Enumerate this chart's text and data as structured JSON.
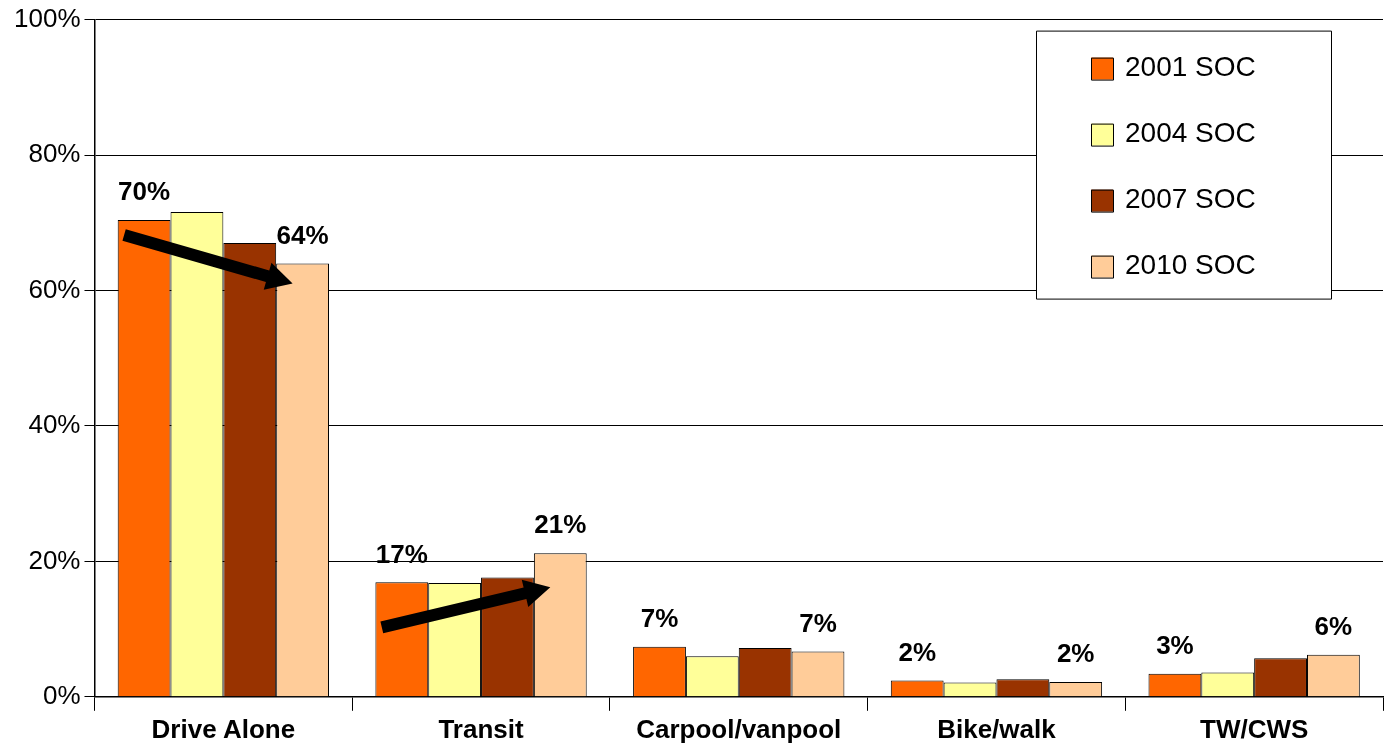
{
  "chart_data": {
    "type": "bar",
    "categories": [
      "Drive Alone",
      "Transit",
      "Carpool/vanpool",
      "Bike/walk",
      "TW/CWS"
    ],
    "series": [
      {
        "name": "2001 SOC",
        "color": "#ff6600",
        "values": [
          70.4,
          16.9,
          7.4,
          2.4,
          3.4
        ],
        "value_labels": [
          "70%",
          "17%",
          "7%",
          "2%",
          "3%"
        ]
      },
      {
        "name": "2004 SOC",
        "color": "#ffff99",
        "values": [
          71.6,
          16.8,
          6.0,
          2.1,
          3.6
        ],
        "value_labels": [
          null,
          null,
          null,
          null,
          null
        ]
      },
      {
        "name": "2007 SOC",
        "color": "#993300",
        "values": [
          67.0,
          17.6,
          7.2,
          2.6,
          5.7
        ],
        "value_labels": [
          null,
          null,
          null,
          null,
          null
        ]
      },
      {
        "name": "2010 SOC",
        "color": "#ffcc99",
        "values": [
          64.0,
          21.2,
          6.7,
          2.2,
          6.2
        ],
        "value_labels": [
          "64%",
          "21%",
          "7%",
          "2%",
          "6%"
        ]
      }
    ],
    "ylim": [
      0,
      100
    ],
    "yticks": [
      {
        "value": 0,
        "label": "0%"
      },
      {
        "value": 20,
        "label": "20%"
      },
      {
        "value": 40,
        "label": "40%"
      },
      {
        "value": 60,
        "label": "60%"
      },
      {
        "value": 80,
        "label": "80%"
      },
      {
        "value": 100,
        "label": "100%"
      }
    ],
    "grid": "y",
    "legend": "top right"
  }
}
